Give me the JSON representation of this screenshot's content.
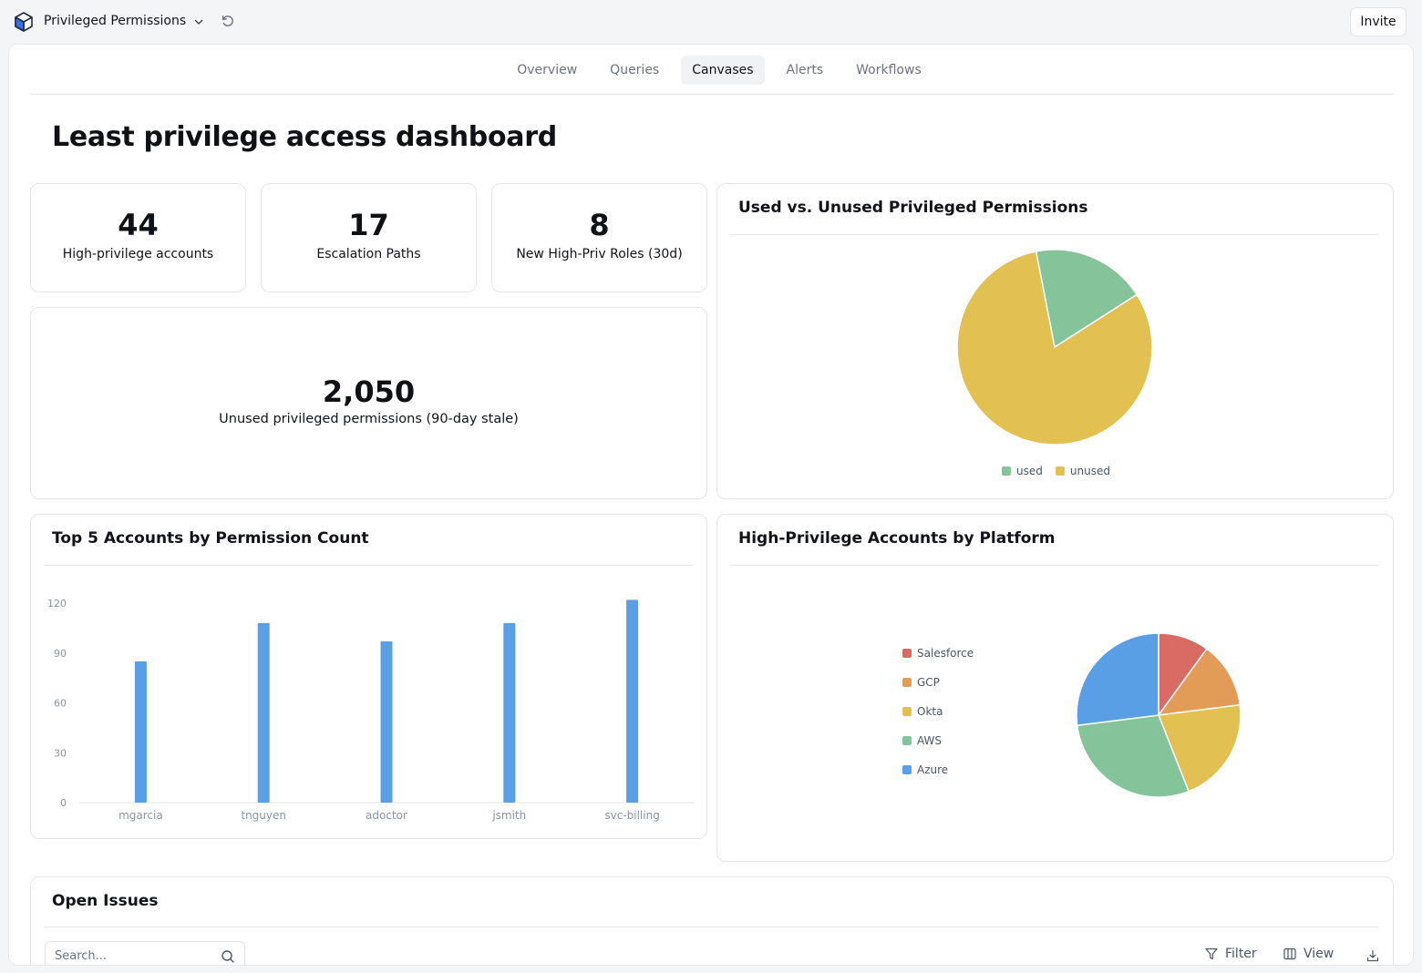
{
  "app": {
    "title": "Privileged Permissions",
    "invite_label": "Invite"
  },
  "tabs": [
    {
      "label": "Overview",
      "active": false
    },
    {
      "label": "Queries",
      "active": false
    },
    {
      "label": "Canvases",
      "active": true
    },
    {
      "label": "Alerts",
      "active": false
    },
    {
      "label": "Workflows",
      "active": false
    }
  ],
  "page": {
    "title": "Least privilege access dashboard"
  },
  "stats": [
    {
      "value": "44",
      "label": "High-privilege accounts"
    },
    {
      "value": "17",
      "label": "Escalation Paths"
    },
    {
      "value": "8",
      "label": "New High-Priv Roles (30d)"
    }
  ],
  "big_stat": {
    "value": "2,050",
    "label": "Unused privileged permissions (90-day stale)"
  },
  "colors": {
    "used": "#85c49b",
    "unused": "#e2c052",
    "bar": "#589fe6",
    "salesforce": "#d86b63",
    "gcp": "#e39b58",
    "okta": "#e2c052",
    "aws": "#85c49b",
    "azure": "#589fe6"
  },
  "chart_data": [
    {
      "type": "pie",
      "title": "Used vs. Unused Privileged Permissions",
      "labels": [
        "used",
        "unused"
      ],
      "values": [
        19,
        81
      ],
      "legend": "bottom"
    },
    {
      "type": "bar",
      "title": "Top 5 Accounts by Permission Count",
      "categories": [
        "mgarcia",
        "tnguyen",
        "adoctor",
        "jsmith",
        "svc-billing"
      ],
      "values": [
        85,
        108,
        97,
        108,
        122
      ],
      "ylim": [
        0,
        120
      ],
      "yticks": [
        0,
        30,
        60,
        90,
        120
      ],
      "grid": false
    },
    {
      "type": "pie",
      "title": "High-Privilege Accounts by Platform",
      "labels": [
        "Salesforce",
        "GCP",
        "Okta",
        "AWS",
        "Azure"
      ],
      "values": [
        10,
        13,
        21,
        29,
        27
      ],
      "legend": "left"
    }
  ],
  "issues": {
    "title": "Open Issues",
    "search_placeholder": "Search...",
    "filter_label": "Filter",
    "view_label": "View"
  },
  "icons": [
    "cube-logo-icon",
    "chevron-down-icon",
    "refresh-icon",
    "search-icon",
    "filter-icon",
    "columns-icon",
    "download-icon"
  ]
}
